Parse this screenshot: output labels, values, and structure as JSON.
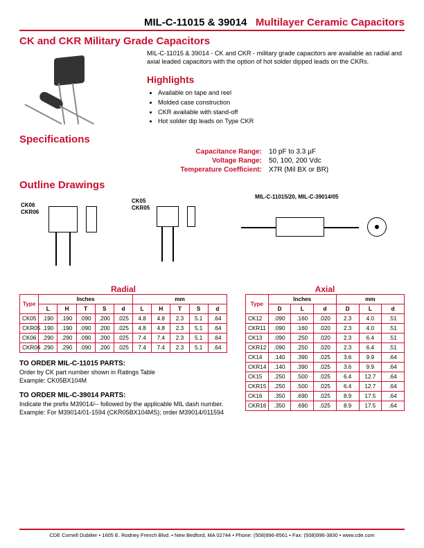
{
  "header": {
    "part_codes": "MIL-C-11015 & 39014",
    "product": "Multilayer Ceramic Capacitors"
  },
  "title_main": "CK and CKR Military Grade Capacitors",
  "intro": "MIL-C-11015 & 39014 - CK and CKR - military grade capacitors are available as radial and axial leaded       capacitors  with the option of hot solder dipped leads on the CKRs.",
  "highlights_h": "Highlights",
  "highlights": [
    "Available on tape and reel",
    "Molded case construction",
    "CKR available with stand-off",
    "Hot solder dip leads on Type CKR"
  ],
  "specs_h": "Specifications",
  "specs": {
    "cap_label": "Capacitance Range:",
    "cap_val": "10 pF to 3.3 µF",
    "volt_label": "Voltage Range:",
    "volt_val": "50, 100, 200 Vdc",
    "tc_label": "Temperature Coefficient:",
    "tc_val": "X7R (Mil BX or BR)"
  },
  "outline_h": "Outline Drawings",
  "drawing_labels": {
    "ck06": "CK06",
    "ckr06": "CKR06",
    "ck05": "CK05",
    "ckr05": "CKR05",
    "axial_title": "MIL-C-11015/20, MIL-C-39014/05"
  },
  "radial_h": "Radial",
  "axial_h": "Axial",
  "radial_table": {
    "cols_group": [
      "Inches",
      "mm"
    ],
    "cols": [
      "L",
      "H",
      "T",
      "S",
      "d",
      "L",
      "H",
      "T",
      "S",
      "d"
    ],
    "type_h": "Type",
    "rows": [
      {
        "type": "CK05",
        "c": [
          ".190",
          ".190",
          ".090",
          ".200",
          ".025",
          "4.8",
          "4.8",
          "2.3",
          "5.1",
          ".64"
        ]
      },
      {
        "type": "CKR05",
        "c": [
          ".190",
          ".190",
          ".090",
          ".200",
          ".025",
          "4.8",
          "4.8",
          "2.3",
          "5.1",
          ".64"
        ]
      },
      {
        "type": "CK06",
        "c": [
          ".290",
          ".290",
          ".090",
          ".200",
          ".025",
          "7.4",
          "7.4",
          "2.3",
          "5.1",
          ".64"
        ]
      },
      {
        "type": "CKR06",
        "c": [
          ".290",
          ".290",
          ".090",
          ".200",
          ".025",
          "7.4",
          "7.4",
          "2.3",
          "5.1",
          ".64"
        ]
      }
    ]
  },
  "axial_table": {
    "cols_group": [
      "Inches",
      "mm"
    ],
    "cols": [
      "D",
      "L",
      "d",
      "D",
      "L",
      "d"
    ],
    "type_h": "Type",
    "rows": [
      {
        "type": "CK12",
        "c": [
          ".090",
          ".160",
          ".020",
          "2.3",
          "4.0",
          ".51"
        ]
      },
      {
        "type": "CKR11",
        "c": [
          ".090",
          ".160",
          ".020",
          "2.3",
          "4.0",
          ".51"
        ]
      },
      {
        "type": "CK13",
        "c": [
          ".090",
          ".250",
          ".020",
          "2.3",
          "6.4",
          ".51"
        ]
      },
      {
        "type": "CKR12",
        "c": [
          ".090",
          ".250",
          ".020",
          "2.3",
          "6.4",
          ".51"
        ]
      },
      {
        "type": "CK14",
        "c": [
          ".140",
          ".390",
          ".025",
          "3.6",
          "9.9",
          ".64"
        ]
      },
      {
        "type": "CKR14",
        "c": [
          ".140",
          ".390",
          ".025",
          "3.6",
          "9.9",
          ".64"
        ]
      },
      {
        "type": "CK15",
        "c": [
          ".250",
          ".500",
          ".025",
          "6.4",
          "12.7",
          ".64"
        ]
      },
      {
        "type": "CKR15",
        "c": [
          ".250",
          ".500",
          ".025",
          "6.4",
          "12.7",
          ".64"
        ]
      },
      {
        "type": "CK16",
        "c": [
          ".350",
          ".690",
          ".025",
          "8.9",
          "17.5",
          ".64"
        ]
      },
      {
        "type": "CKR16",
        "c": [
          ".350",
          ".690",
          ".025",
          "8.9",
          "17.5",
          ".64"
        ]
      }
    ]
  },
  "order1_h": "TO ORDER MIL-C-11015 PARTS:",
  "order1_p": "Order by CK part number shown in Ratings Table\nExample:  CK05BX104M",
  "order2_h": "TO ORDER MIL-C-39014 PARTS:",
  "order2_p": "Indicate the prefix M39014/-- followed by the applicable MIL dash number.  Example:  For M39014/01-1594 (CKR05BX104MS); order M39014/011594",
  "footer": "CDE Cornell Dubilier • 1605 E. Rodney French Blvd. • New Bedford, MA 02744 • Phone: (508)996-8561 • Fax: (508)996-3830 • www.cde.com",
  "colors": {
    "brand_red": "#c8102e",
    "text": "#000000",
    "rule": "#c8102e"
  }
}
